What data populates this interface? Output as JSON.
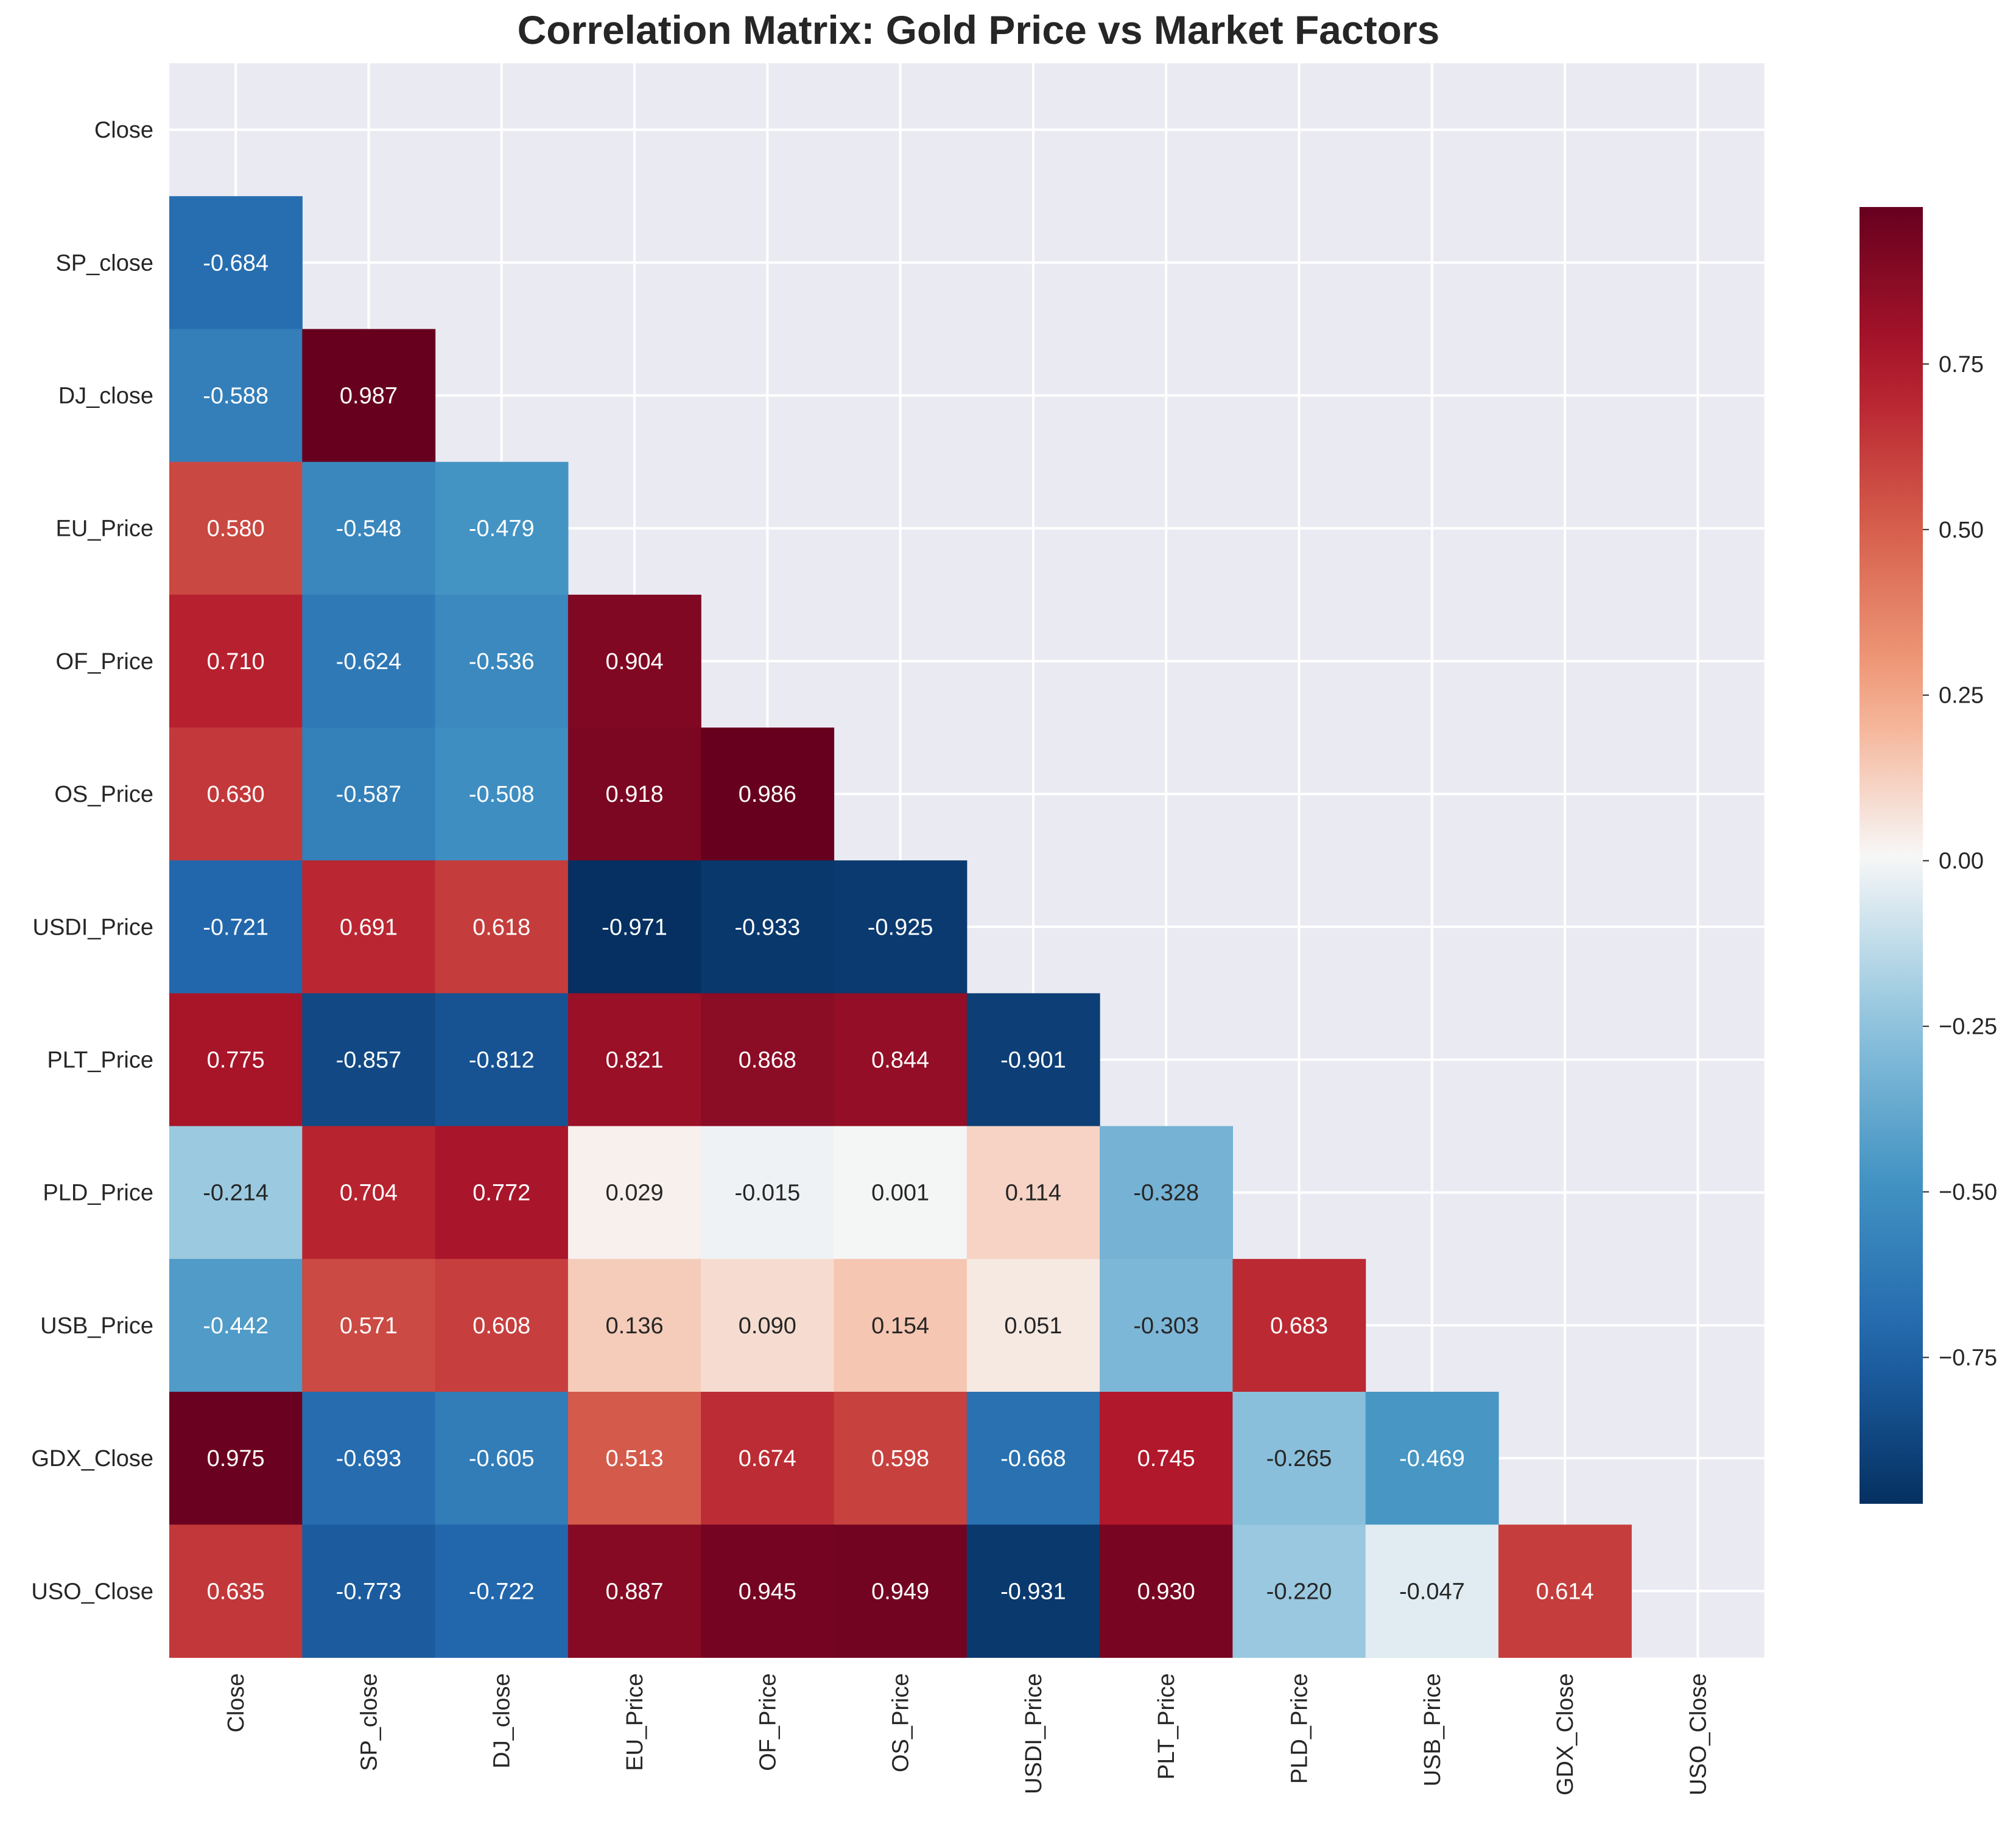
{
  "chart_data": {
    "type": "heatmap",
    "title": "Correlation Matrix: Gold Price vs Market Factors",
    "variables": [
      "Close",
      "SP_close",
      "DJ_close",
      "EU_Price",
      "OF_Price",
      "OS_Price",
      "USDI_Price",
      "PLT_Price",
      "PLD_Price",
      "USB_Price",
      "GDX_Close",
      "USO_Close"
    ],
    "mask": "upper-triangle-including-diagonal",
    "lower_triangle": [
      [],
      [
        -0.684
      ],
      [
        -0.588,
        0.987
      ],
      [
        0.58,
        -0.548,
        -0.479
      ],
      [
        0.71,
        -0.624,
        -0.536,
        0.904
      ],
      [
        0.63,
        -0.587,
        -0.508,
        0.918,
        0.986
      ],
      [
        -0.721,
        0.691,
        0.618,
        -0.971,
        -0.933,
        -0.925
      ],
      [
        0.775,
        -0.857,
        -0.812,
        0.821,
        0.868,
        0.844,
        -0.901
      ],
      [
        -0.214,
        0.704,
        0.772,
        0.029,
        -0.015,
        0.001,
        0.114,
        -0.328
      ],
      [
        -0.442,
        0.571,
        0.608,
        0.136,
        0.09,
        0.154,
        0.051,
        -0.303,
        0.683
      ],
      [
        0.975,
        -0.693,
        -0.605,
        0.513,
        0.674,
        0.598,
        -0.668,
        0.745,
        -0.265,
        -0.469
      ],
      [
        0.635,
        -0.773,
        -0.722,
        0.887,
        0.945,
        0.949,
        -0.931,
        0.93,
        -0.22,
        -0.047,
        0.614
      ]
    ],
    "labels": [
      [],
      [
        "-0.684"
      ],
      [
        "-0.588",
        "0.987"
      ],
      [
        "0.580",
        "-0.548",
        "-0.479"
      ],
      [
        "0.710",
        "-0.624",
        "-0.536",
        "0.904"
      ],
      [
        "0.630",
        "-0.587",
        "-0.508",
        "0.918",
        "0.986"
      ],
      [
        "-0.721",
        "0.691",
        "0.618",
        "-0.971",
        "-0.933",
        "-0.925"
      ],
      [
        "0.775",
        "-0.857",
        "-0.812",
        "0.821",
        "0.868",
        "0.844",
        "-0.901"
      ],
      [
        "-0.214",
        "0.704",
        "0.772",
        "0.029",
        "-0.015",
        "0.001",
        "0.114",
        "-0.328"
      ],
      [
        "-0.442",
        "0.571",
        "0.608",
        "0.136",
        "0.090",
        "0.154",
        "0.051",
        "-0.303",
        "0.683"
      ],
      [
        "0.975",
        "-0.693",
        "-0.605",
        "0.513",
        "0.674",
        "0.598",
        "-0.668",
        "0.745",
        "-0.265",
        "-0.469"
      ],
      [
        "0.635",
        "-0.773",
        "-0.722",
        "0.887",
        "0.945",
        "0.949",
        "-0.931",
        "0.930",
        "-0.220",
        "-0.047",
        "0.614"
      ]
    ],
    "colormap": "RdBu_r",
    "color_range": [
      -0.971,
      0.987
    ],
    "colorbar": {
      "ticks": [
        0.75,
        0.5,
        0.25,
        0.0,
        -0.25,
        -0.5,
        -0.75
      ],
      "tick_labels": [
        "0.75",
        "0.50",
        "0.25",
        "0.00",
        "−0.25",
        "−0.50",
        "−0.75"
      ]
    },
    "grid": true,
    "colorbar_position": "right"
  },
  "colors": {
    "axes_background": "#eaeaf2",
    "grid": "#ffffff",
    "text_dark": "#262626",
    "text_light": "#ffffff"
  }
}
